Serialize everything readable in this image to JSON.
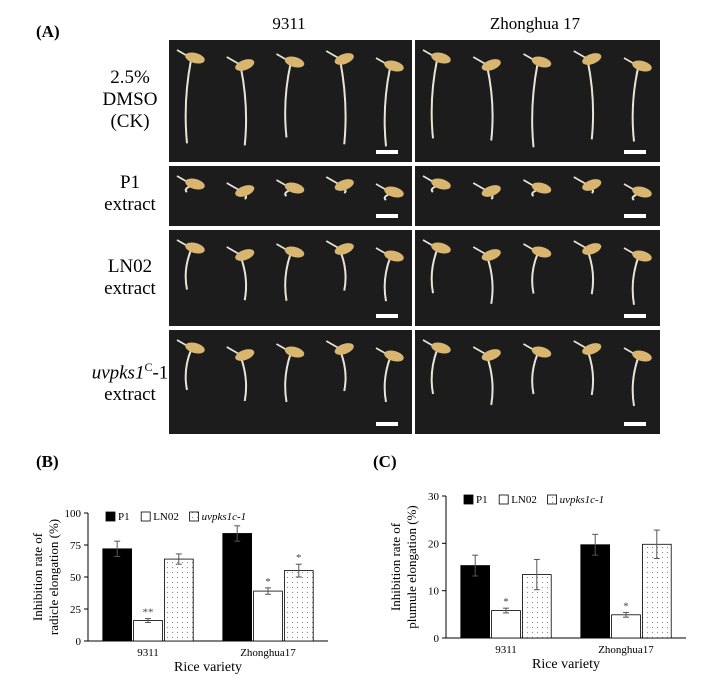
{
  "panels": {
    "A": "(A)",
    "B": "(B)",
    "C": "(C)"
  },
  "photo_grid": {
    "columns": [
      "9311",
      "Zhonghua 17"
    ],
    "rows": [
      {
        "lines": [
          "2.5%",
          "DMSO",
          "(CK)"
        ]
      },
      {
        "lines": [
          "P1",
          "extract"
        ]
      },
      {
        "lines": [
          "LN02",
          "extract"
        ]
      },
      {
        "italic": "uvpks1",
        "sup": "C",
        "rest": "-1",
        "line2": "extract"
      }
    ]
  },
  "colors": {
    "photo_bg": "#1c1c1c",
    "seed": "#d9b670",
    "root": "#e8e4d8",
    "bar_p1": "#000000",
    "bar_ln02": "#ffffff",
    "bar_uv": "#ffffff"
  },
  "chart_data": [
    {
      "type": "bar",
      "panel": "(B)",
      "ylabel_lines": [
        "Inhibition rate of",
        "radicle elongation (%)"
      ],
      "xlabel": "Rice variety",
      "categories": [
        "9311",
        "Zhonghua17"
      ],
      "ylim": [
        0,
        100
      ],
      "yticks": [
        "0",
        "25",
        "50",
        "75",
        "100"
      ],
      "legend": [
        "P1",
        "LN02",
        "uvpks1c-1"
      ],
      "series": [
        {
          "name": "P1",
          "values": [
            72,
            84
          ],
          "errors": [
            6,
            6
          ],
          "sig": [
            "",
            ""
          ]
        },
        {
          "name": "LN02",
          "values": [
            16,
            39
          ],
          "errors": [
            1.5,
            2.5
          ],
          "sig": [
            "**",
            "*"
          ]
        },
        {
          "name": "uvpks1c-1",
          "values": [
            64,
            55
          ],
          "errors": [
            4,
            5
          ],
          "sig": [
            "",
            "*"
          ]
        }
      ]
    },
    {
      "type": "bar",
      "panel": "(C)",
      "ylabel_lines": [
        "Inhibition rate of",
        "plumule elongation (%)"
      ],
      "xlabel": "Rice variety",
      "categories": [
        "9311",
        "Zhonghua17"
      ],
      "ylim": [
        0,
        30
      ],
      "yticks": [
        "0",
        "10",
        "20",
        "30"
      ],
      "legend": [
        "P1",
        "LN02",
        "uvpks1c-1"
      ],
      "series": [
        {
          "name": "P1",
          "values": [
            15.3,
            19.7
          ],
          "errors": [
            2.2,
            2.2
          ],
          "sig": [
            "",
            ""
          ]
        },
        {
          "name": "LN02",
          "values": [
            5.8,
            4.9
          ],
          "errors": [
            0.5,
            0.5
          ],
          "sig": [
            "*",
            "*"
          ]
        },
        {
          "name": "uvpks1c-1",
          "values": [
            13.4,
            19.8
          ],
          "errors": [
            3.2,
            3.0
          ],
          "sig": [
            "",
            ""
          ]
        }
      ]
    }
  ]
}
